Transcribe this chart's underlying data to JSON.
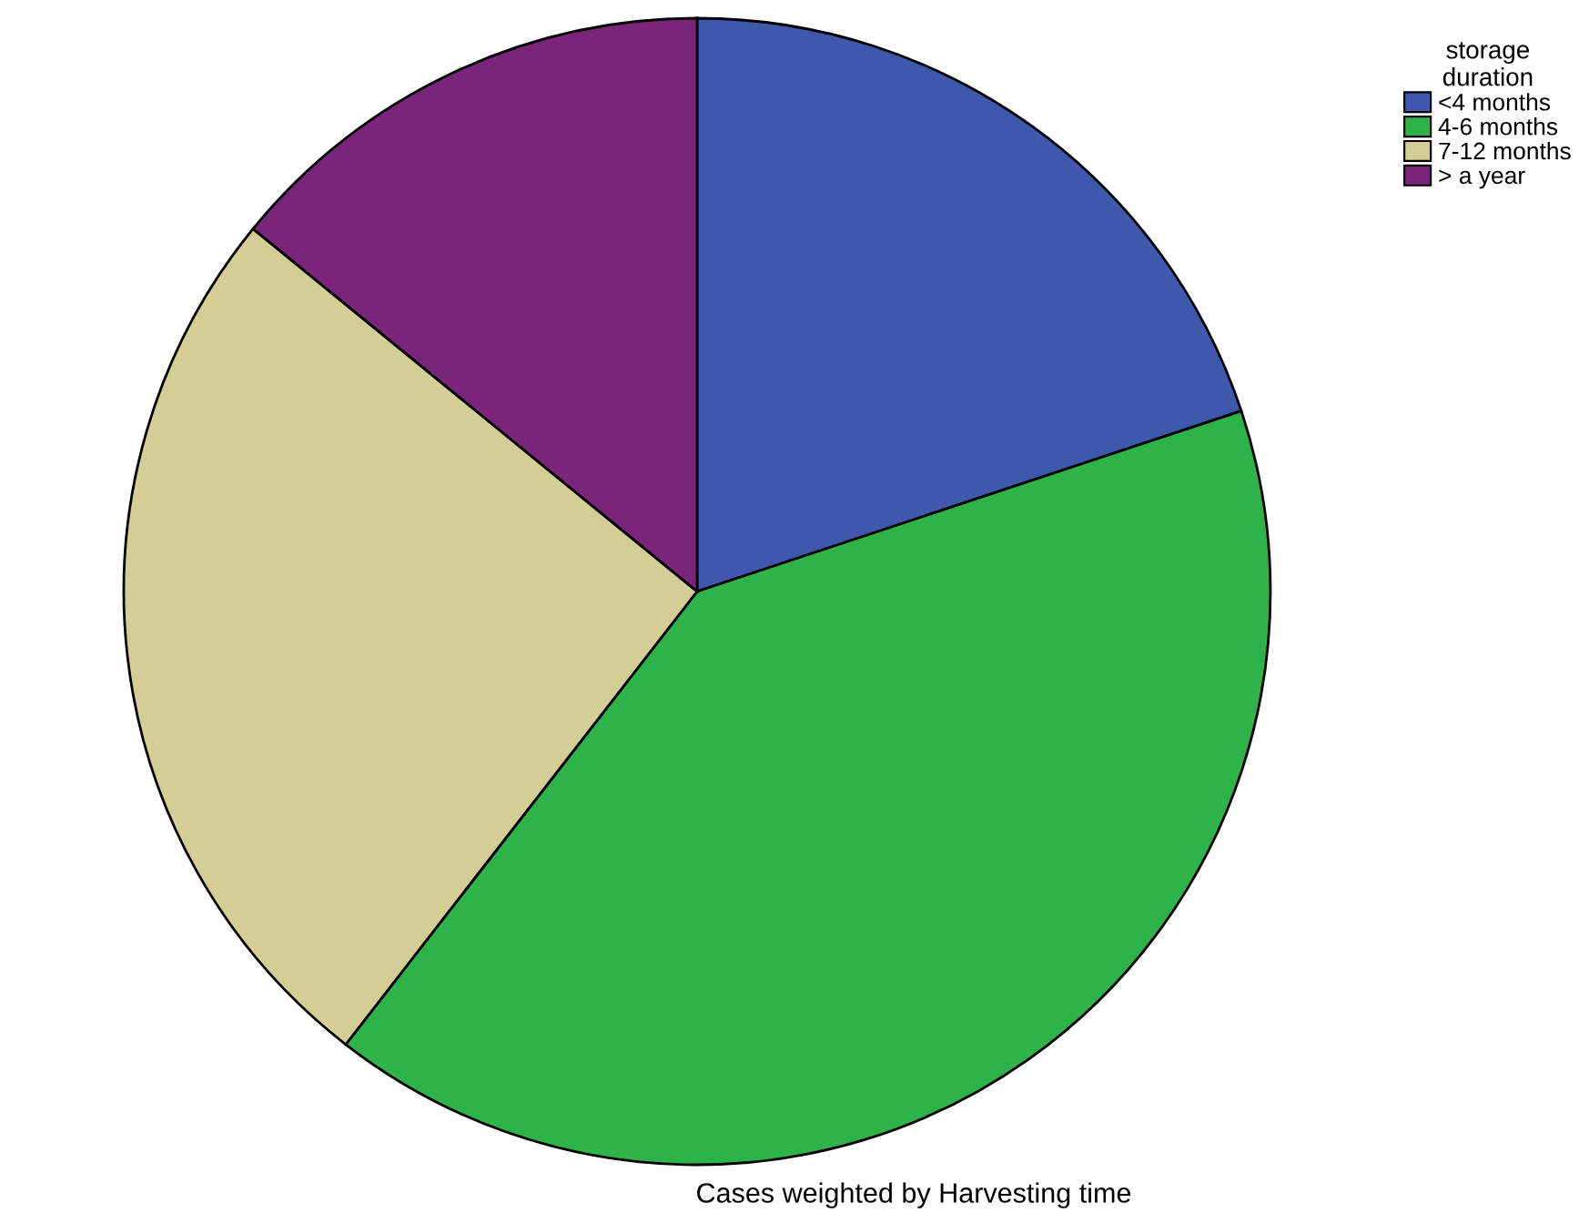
{
  "chart_data": {
    "type": "pie",
    "categories": [
      "<4 months",
      "4-6 months",
      "7-12 months",
      "> a year"
    ],
    "values": [
      19.9,
      40.6,
      25.4,
      14.1
    ],
    "colors": [
      "#3e58ac",
      "#2db34a",
      "#d5cd96",
      "#79267a"
    ],
    "legend_title": "storage\nduration",
    "legend": "top right",
    "annotations": [
      "Cases weighted by Harvesting time"
    ]
  }
}
